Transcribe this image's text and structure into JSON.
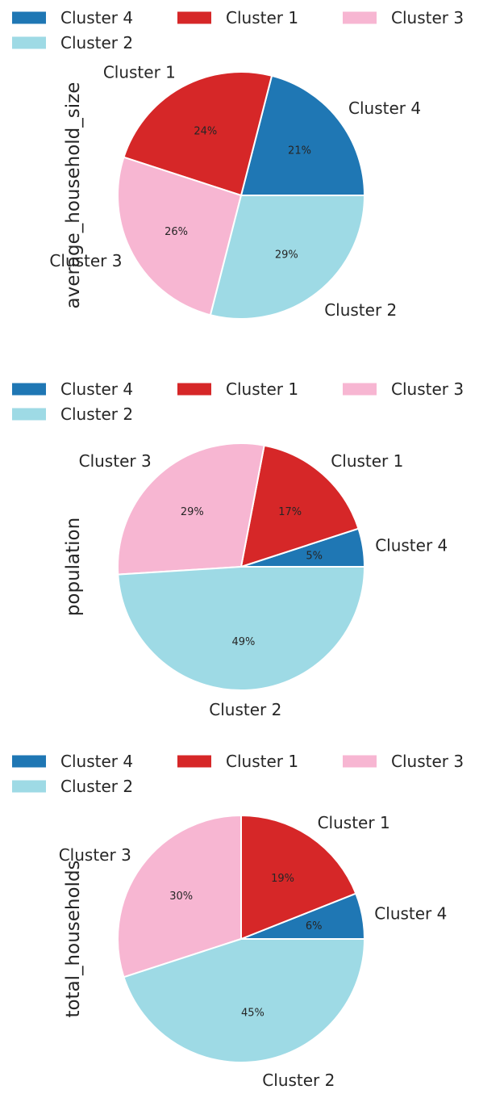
{
  "chart_data": [
    {
      "type": "pie",
      "ylabel": "average_household_size",
      "categories": [
        "Cluster 4",
        "Cluster 1",
        "Cluster 3",
        "Cluster 2"
      ],
      "values": [
        21,
        24,
        26,
        29
      ],
      "value_labels": [
        "21%",
        "24%",
        "26%",
        "29%"
      ],
      "colors": [
        "#1f77b4",
        "#d62728",
        "#f7b6d2",
        "#9edae5"
      ],
      "legend": [
        "Cluster 4",
        "Cluster 1",
        "Cluster 3",
        "Cluster 2"
      ],
      "legend_placement": "top"
    },
    {
      "type": "pie",
      "ylabel": "population",
      "categories": [
        "Cluster 4",
        "Cluster 1",
        "Cluster 3",
        "Cluster 2"
      ],
      "values": [
        5,
        17,
        29,
        49
      ],
      "value_labels": [
        "5%",
        "17%",
        "29%",
        "49%"
      ],
      "colors": [
        "#1f77b4",
        "#d62728",
        "#f7b6d2",
        "#9edae5"
      ],
      "legend": [
        "Cluster 4",
        "Cluster 1",
        "Cluster 3",
        "Cluster 2"
      ],
      "legend_placement": "top"
    },
    {
      "type": "pie",
      "ylabel": "total_households",
      "categories": [
        "Cluster 4",
        "Cluster 1",
        "Cluster 3",
        "Cluster 2"
      ],
      "values": [
        6,
        19,
        30,
        45
      ],
      "value_labels": [
        "6%",
        "19%",
        "30%",
        "45%"
      ],
      "colors": [
        "#1f77b4",
        "#d62728",
        "#f7b6d2",
        "#9edae5"
      ],
      "legend": [
        "Cluster 4",
        "Cluster 1",
        "Cluster 3",
        "Cluster 2"
      ],
      "legend_placement": "top"
    }
  ]
}
